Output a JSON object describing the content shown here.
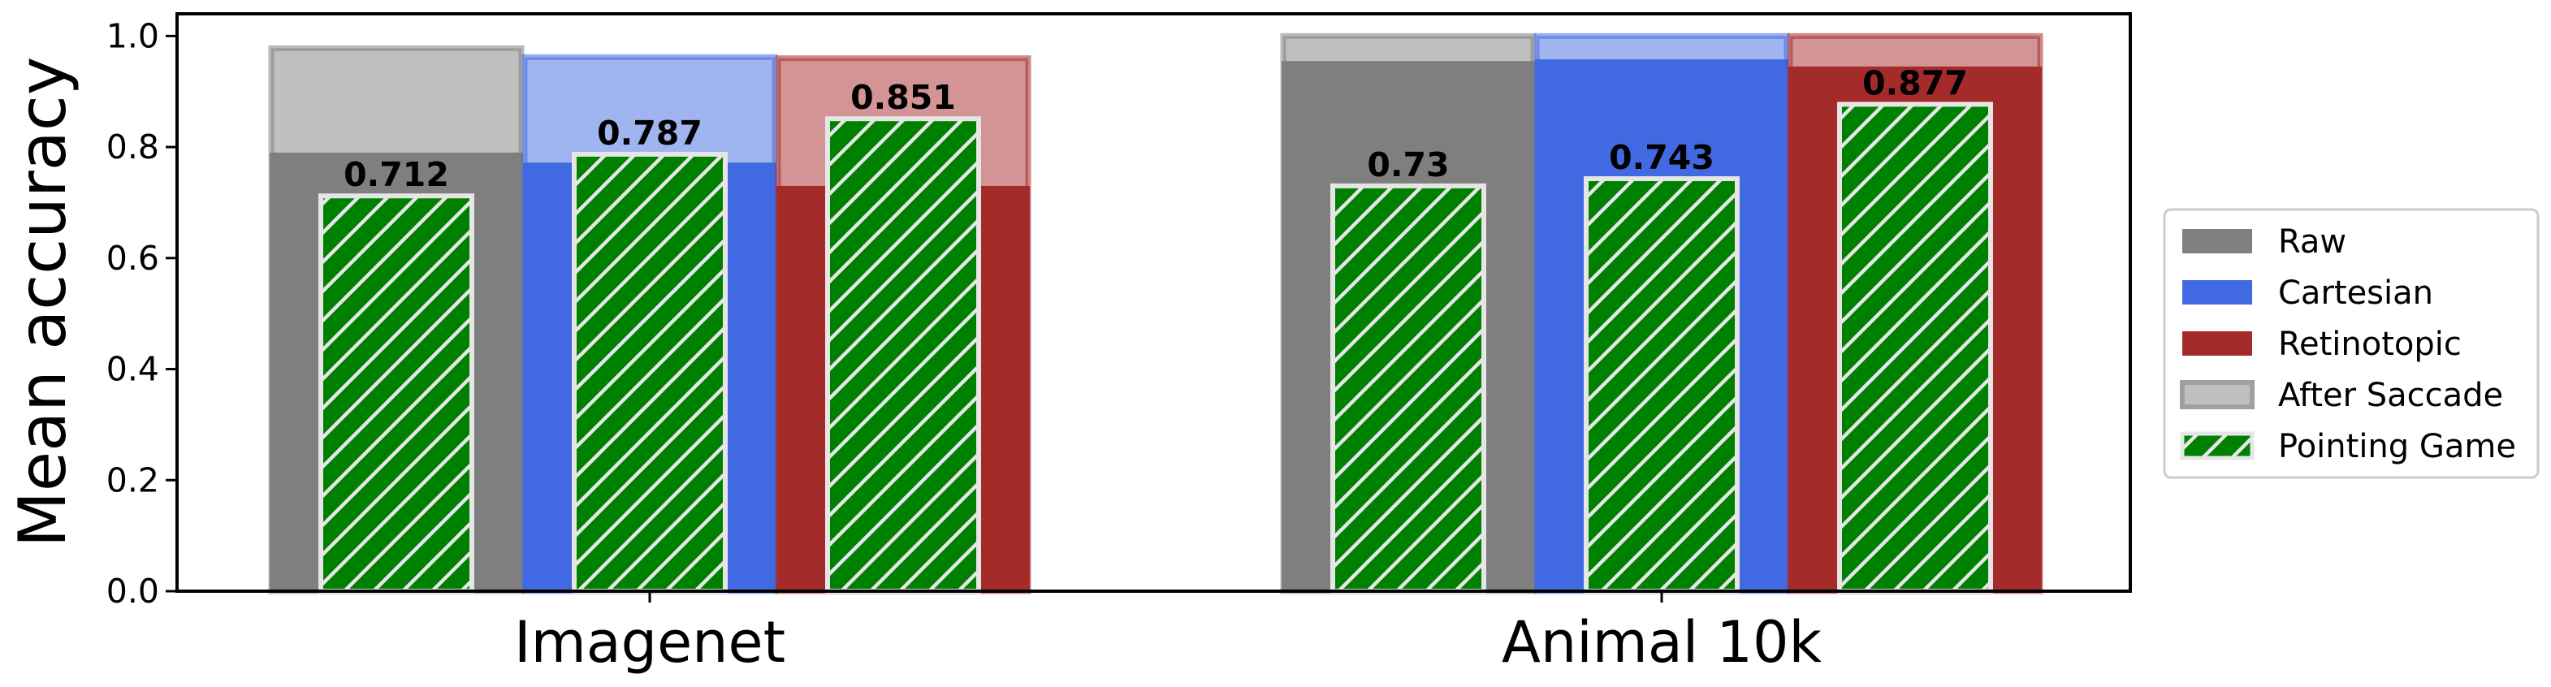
{
  "chart_data": {
    "type": "bar",
    "categories": [
      "Imagenet",
      "Animal 10k"
    ],
    "ylabel": "Mean accuracy",
    "ylim": [
      0,
      1.04
    ],
    "yticks": [
      "0.0",
      "0.2",
      "0.4",
      "0.6",
      "0.8",
      "1.0"
    ],
    "groups": [
      "Raw",
      "Cartesian",
      "Retinotopic"
    ],
    "group_colors": {
      "Raw": "#7f7f7f",
      "Cartesian": "#4169e1",
      "Retinotopic": "#a52a2a"
    },
    "series": [
      {
        "name": "Raw",
        "values": [
          0.79,
          0.955
        ]
      },
      {
        "name": "Cartesian",
        "values": [
          0.772,
          0.958
        ]
      },
      {
        "name": "Retinotopic",
        "values": [
          0.73,
          0.945
        ]
      },
      {
        "name": "After Saccade",
        "values": [
          [
            0.978,
            0.962,
            0.96
          ],
          [
            1.0,
            1.0,
            1.0
          ]
        ]
      },
      {
        "name": "Pointing Game",
        "values": [
          [
            0.712,
            0.787,
            0.851
          ],
          [
            0.73,
            0.743,
            0.877
          ]
        ]
      }
    ],
    "data_labels": [
      [
        "0.712",
        "0.787",
        "0.851"
      ],
      [
        "0.73",
        "0.743",
        "0.877"
      ]
    ],
    "legend": [
      "Raw",
      "Cartesian",
      "Retinotopic",
      "After Saccade",
      "Pointing Game"
    ],
    "legend_position": "center-right",
    "grid": false
  }
}
